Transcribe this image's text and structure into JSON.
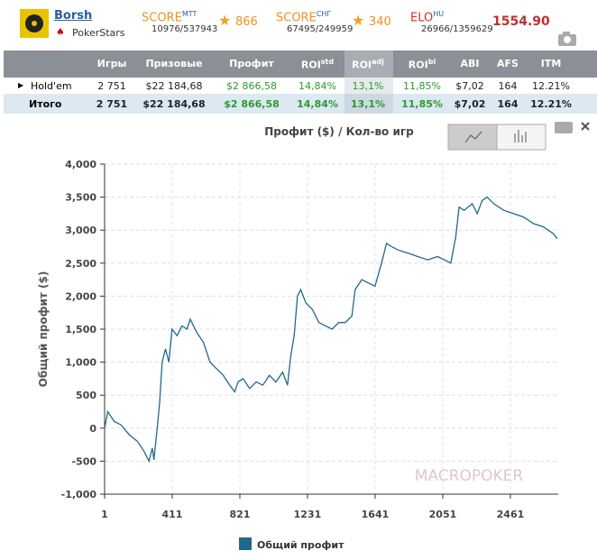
{
  "header": {
    "user": "Borsh",
    "room": "PokerStars",
    "score_mtt": {
      "label": "SCORE",
      "sup": "MTT",
      "rank": "10976/537943",
      "value": "866"
    },
    "score_sng": {
      "label": "SCORE",
      "sup": "СНГ",
      "rank": "67495/249959",
      "value": "340"
    },
    "elo": {
      "label": "ELO",
      "sup": "HU",
      "rank": "26966/1359629",
      "value": "1554.90"
    }
  },
  "table": {
    "columns": [
      {
        "text": "Игры"
      },
      {
        "text": "Призовые"
      },
      {
        "text": "Профит"
      },
      {
        "text": "ROI",
        "sup": "std"
      },
      {
        "text": "ROI",
        "sup": "adj"
      },
      {
        "text": "ROI",
        "sup": "bi"
      },
      {
        "text": "ABI"
      },
      {
        "text": "AFS"
      },
      {
        "text": "ITM"
      }
    ],
    "rows": [
      [
        "Hold'em",
        "2 751",
        "$22 184,68",
        "$2 866,58",
        "14,84%",
        "13,1%",
        "11,85%",
        "$7,02",
        "164",
        "12.21%"
      ],
      [
        "Итого",
        "2 751",
        "$22 184,68",
        "$2 866,58",
        "14,84%",
        "13,1%",
        "11,85%",
        "$7,02",
        "164",
        "12.21%"
      ]
    ]
  },
  "chart_data": {
    "type": "line",
    "title": "Профит ($) / Кол-во игр",
    "y_label": "Общий профит ($)",
    "watermark": "MACROPOKER",
    "x": [
      1,
      20,
      60,
      100,
      150,
      200,
      240,
      270,
      290,
      300,
      320,
      335,
      350,
      370,
      390,
      410,
      440,
      470,
      500,
      520,
      560,
      600,
      640,
      680,
      720,
      760,
      790,
      810,
      840,
      880,
      920,
      960,
      1000,
      1040,
      1080,
      1110,
      1130,
      1150,
      1170,
      1190,
      1220,
      1260,
      1300,
      1340,
      1380,
      1420,
      1460,
      1500,
      1520,
      1560,
      1600,
      1640,
      1680,
      1710,
      1740,
      1780,
      1840,
      1900,
      1960,
      2020,
      2060,
      2100,
      2130,
      2150,
      2180,
      2230,
      2260,
      2290,
      2320,
      2360,
      2420,
      2480,
      2540,
      2600,
      2660,
      2720,
      2745
    ],
    "series": [
      {
        "name": "Общий профит",
        "color": "#1f6a8a",
        "values": [
          0,
          250,
          100,
          50,
          -100,
          -200,
          -350,
          -500,
          -300,
          -480,
          0,
          400,
          1000,
          1200,
          1000,
          1500,
          1400,
          1550,
          1500,
          1650,
          1450,
          1300,
          1000,
          900,
          800,
          650,
          550,
          700,
          750,
          600,
          700,
          650,
          800,
          700,
          850,
          650,
          1100,
          1400,
          2000,
          2100,
          1900,
          1800,
          1600,
          1550,
          1500,
          1600,
          1600,
          1700,
          2100,
          2250,
          2200,
          2150,
          2500,
          2800,
          2750,
          2700,
          2650,
          2600,
          2550,
          2600,
          2550,
          2500,
          2900,
          3350,
          3300,
          3400,
          3250,
          3450,
          3500,
          3400,
          3300,
          3250,
          3200,
          3100,
          3050,
          2950,
          2870
        ]
      }
    ],
    "xlim": [
      1,
      2751
    ],
    "ylim": [
      -1000,
      4000
    ],
    "xticks": [
      1,
      411,
      821,
      1231,
      1641,
      2051,
      2461
    ],
    "yticks": [
      {
        "value": -1000,
        "label": "-1,000"
      },
      -500,
      0,
      500,
      {
        "value": 1000,
        "label": "1,000"
      },
      {
        "value": 1500,
        "label": "1,500"
      },
      {
        "value": 2000,
        "label": "2,000"
      },
      {
        "value": 2500,
        "label": "2,500"
      },
      {
        "value": 3000,
        "label": "3,000"
      },
      {
        "value": 3500,
        "label": "3,500"
      },
      {
        "value": 4000,
        "label": "4,000"
      }
    ],
    "grid": true
  }
}
